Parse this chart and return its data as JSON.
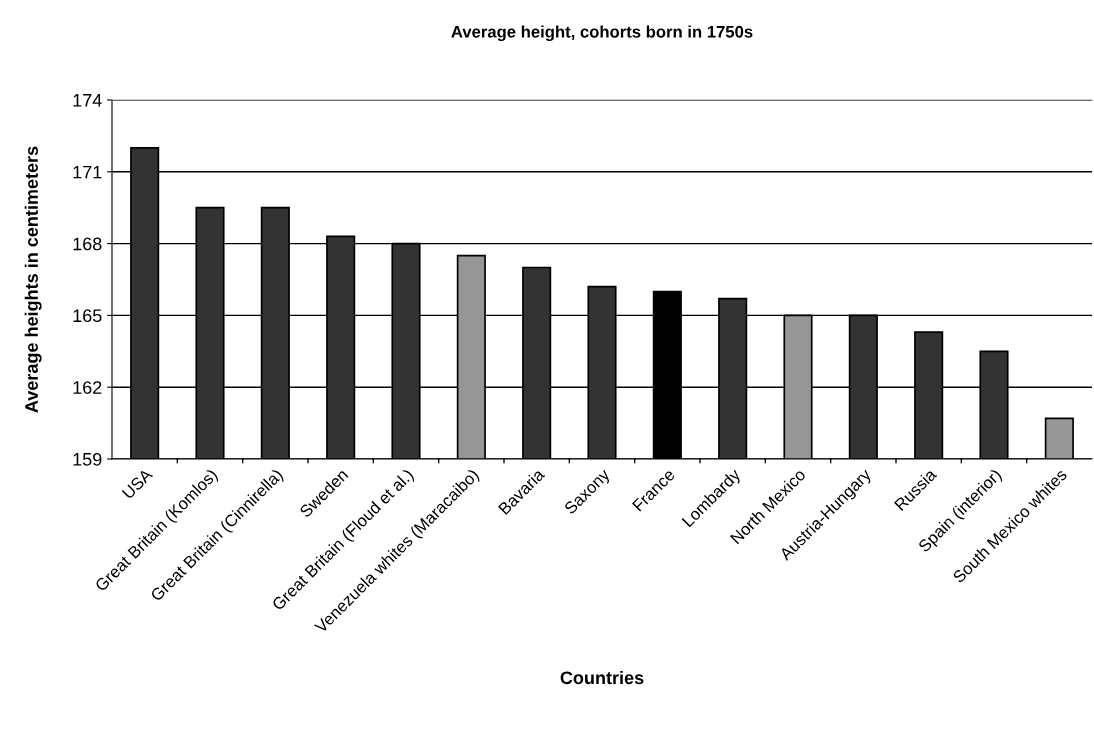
{
  "chart_data": {
    "type": "bar",
    "title": "Average height, cohorts born in 1750s",
    "xlabel": "Countries",
    "ylabel": "Average heights in centimeters",
    "categories": [
      "USA",
      "Great Britain (Komlos)",
      "Great Britain (Cinnirella)",
      "Sweden",
      "Great Britain (Floud et al.)",
      "Venezuela whites (Maracaibo)",
      "Bavaria",
      "Saxony",
      "France",
      "Lombardy",
      "North Mexico",
      "Austria-Hungary",
      "Russia",
      "Spain (interior)",
      "South Mexico whites"
    ],
    "values": [
      172.0,
      169.5,
      169.5,
      168.3,
      168.0,
      167.5,
      167.0,
      166.2,
      166.0,
      165.7,
      165.0,
      165.0,
      164.3,
      163.5,
      160.7
    ],
    "colors": [
      "#333333",
      "#333333",
      "#333333",
      "#333333",
      "#333333",
      "#969696",
      "#333333",
      "#333333",
      "#000000",
      "#333333",
      "#969696",
      "#333333",
      "#333333",
      "#333333",
      "#969696"
    ],
    "ylim": [
      159,
      174
    ],
    "yticks": [
      159,
      162,
      165,
      168,
      171,
      174
    ],
    "grid": "y",
    "legend": false
  }
}
